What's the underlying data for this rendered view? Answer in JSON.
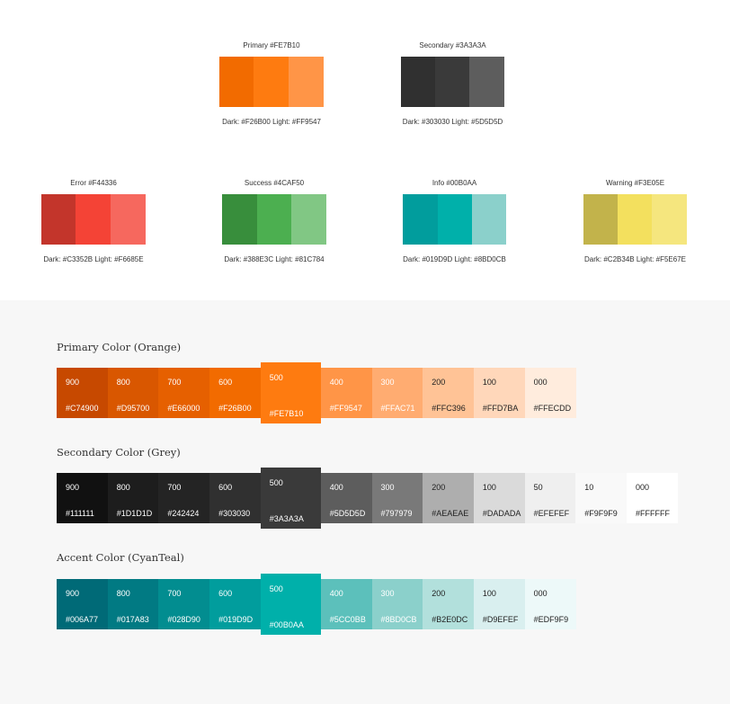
{
  "swatches": [
    {
      "title": "Primary  #FE7B10",
      "sub": "Dark: #F26B00  Light: #FF9547",
      "colors": [
        "#F26B00",
        "#FE7B10",
        "#FF9547"
      ]
    },
    {
      "title": "Secondary  #3A3A3A",
      "sub": "Dark: #303030  Light: #5D5D5D",
      "colors": [
        "#303030",
        "#3A3A3A",
        "#5D5D5D"
      ]
    },
    {
      "title": "Error  #F44336",
      "sub": "Dark: #C3352B  Light: #F6685E",
      "colors": [
        "#C3352B",
        "#F44336",
        "#F6685E"
      ]
    },
    {
      "title": "Success  #4CAF50",
      "sub": "Dark: #388E3C  Light: #81C784",
      "colors": [
        "#388E3C",
        "#4CAF50",
        "#81C784"
      ]
    },
    {
      "title": "Info  #00B0AA",
      "sub": "Dark: #019D9D  Light: #8BD0CB",
      "colors": [
        "#019D9D",
        "#00B0AA",
        "#8BD0CB"
      ]
    },
    {
      "title": "Warning  #F3E05E",
      "sub": "Dark: #C2B34B  Light: #F5E67E",
      "colors": [
        "#C2B34B",
        "#F3E05E",
        "#F5E67E"
      ]
    }
  ],
  "scales": [
    {
      "title": "Primary Color (Orange)",
      "cells": [
        {
          "level": "900",
          "hex": "#C74900",
          "bg": "#C74900",
          "fg": "#ffffff"
        },
        {
          "level": "800",
          "hex": "#D95700",
          "bg": "#D95700",
          "fg": "#ffffff"
        },
        {
          "level": "700",
          "hex": "#E66000",
          "bg": "#E66000",
          "fg": "#ffffff"
        },
        {
          "level": "600",
          "hex": "#F26B00",
          "bg": "#F26B00",
          "fg": "#ffffff"
        },
        {
          "level": "500",
          "hex": "#FE7B10",
          "bg": "#FE7B10",
          "fg": "#ffffff"
        },
        {
          "level": "400",
          "hex": "#FF9547",
          "bg": "#FF9547",
          "fg": "#ffffff"
        },
        {
          "level": "300",
          "hex": "#FFAC71",
          "bg": "#FFAC71",
          "fg": "#ffffff"
        },
        {
          "level": "200",
          "hex": "#FFC396",
          "bg": "#FFC396",
          "fg": "#222222"
        },
        {
          "level": "100",
          "hex": "#FFD7BA",
          "bg": "#FFD7BA",
          "fg": "#222222"
        },
        {
          "level": "000",
          "hex": "#FFECDD",
          "bg": "#FFECDD",
          "fg": "#222222"
        }
      ]
    },
    {
      "title": "Secondary Color (Grey)",
      "cells": [
        {
          "level": "900",
          "hex": "#111111",
          "bg": "#111111",
          "fg": "#ffffff"
        },
        {
          "level": "800",
          "hex": "#1D1D1D",
          "bg": "#1D1D1D",
          "fg": "#ffffff"
        },
        {
          "level": "700",
          "hex": "#242424",
          "bg": "#242424",
          "fg": "#ffffff"
        },
        {
          "level": "600",
          "hex": "#303030",
          "bg": "#303030",
          "fg": "#ffffff"
        },
        {
          "level": "500",
          "hex": "#3A3A3A",
          "bg": "#3A3A3A",
          "fg": "#ffffff"
        },
        {
          "level": "400",
          "hex": "#5D5D5D",
          "bg": "#5D5D5D",
          "fg": "#ffffff"
        },
        {
          "level": "300",
          "hex": "#797979",
          "bg": "#797979",
          "fg": "#ffffff"
        },
        {
          "level": "200",
          "hex": "#AEAEAE",
          "bg": "#AEAEAE",
          "fg": "#222222"
        },
        {
          "level": "100",
          "hex": "#DADADA",
          "bg": "#DADADA",
          "fg": "#222222"
        },
        {
          "level": "50",
          "hex": "#EFEFEF",
          "bg": "#EFEFEF",
          "fg": "#222222"
        },
        {
          "level": "10",
          "hex": "#F9F9F9",
          "bg": "#F9F9F9",
          "fg": "#222222"
        },
        {
          "level": "000",
          "hex": "#FFFFFF",
          "bg": "#FFFFFF",
          "fg": "#222222"
        }
      ]
    },
    {
      "title": "Accent Color (CyanTeal)",
      "cells": [
        {
          "level": "900",
          "hex": "#006A77",
          "bg": "#006A77",
          "fg": "#ffffff"
        },
        {
          "level": "800",
          "hex": "#017A83",
          "bg": "#017A83",
          "fg": "#ffffff"
        },
        {
          "level": "700",
          "hex": "#028D90",
          "bg": "#028D90",
          "fg": "#ffffff"
        },
        {
          "level": "600",
          "hex": "#019D9D",
          "bg": "#019D9D",
          "fg": "#ffffff"
        },
        {
          "level": "500",
          "hex": "#00B0AA",
          "bg": "#00B0AA",
          "fg": "#ffffff"
        },
        {
          "level": "400",
          "hex": "#5CC0BB",
          "bg": "#5CC0BB",
          "fg": "#ffffff"
        },
        {
          "level": "300",
          "hex": "#8BD0CB",
          "bg": "#8BD0CB",
          "fg": "#ffffff"
        },
        {
          "level": "200",
          "hex": "#B2E0DC",
          "bg": "#B2E0DC",
          "fg": "#222222"
        },
        {
          "level": "100",
          "hex": "#D9EFEF",
          "bg": "#D9EFEF",
          "fg": "#222222"
        },
        {
          "level": "000",
          "hex": "#EDF9F9",
          "bg": "#EDF9F9",
          "fg": "#222222"
        }
      ]
    }
  ]
}
